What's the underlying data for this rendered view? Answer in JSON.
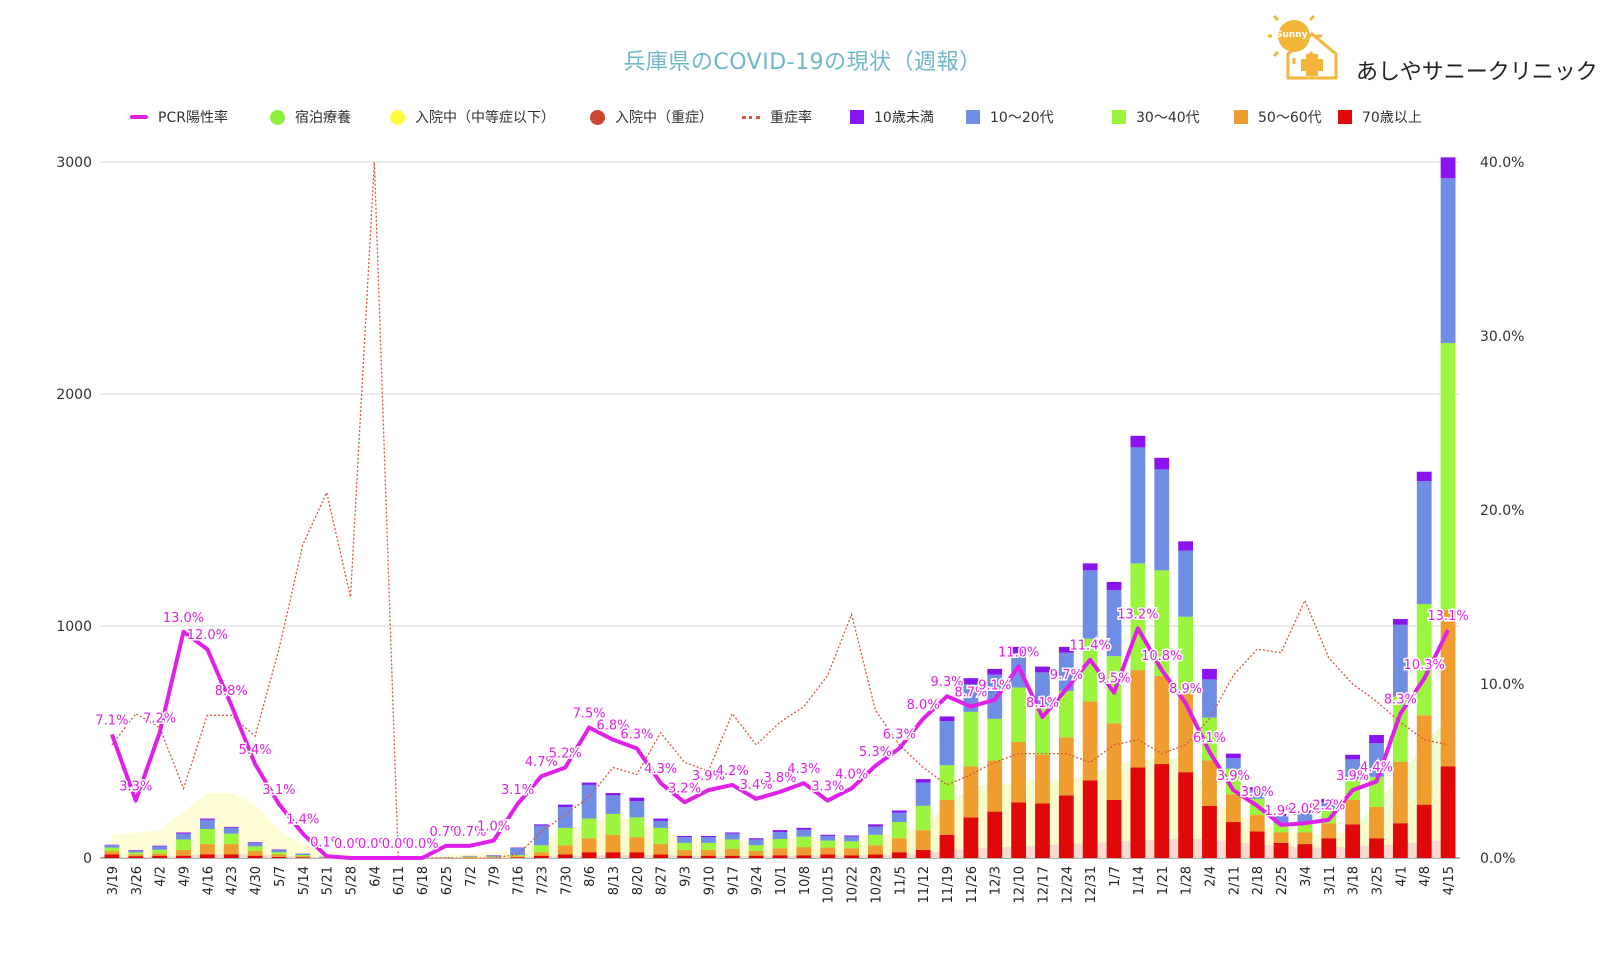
{
  "chart_data": {
    "type": "bar",
    "title": "兵庫県のCOVID-19の現状（週報）",
    "y_left_ticks": [
      "0",
      "1000",
      "2000",
      "3000"
    ],
    "y_right_ticks": [
      "0.0%",
      "10.0%",
      "20.0%",
      "30.0%",
      "40.0%"
    ],
    "ylim_left": [
      0,
      3000
    ],
    "ylim_right": [
      0,
      40
    ],
    "categories": [
      "3/19",
      "3/26",
      "4/2",
      "4/9",
      "4/16",
      "4/23",
      "4/30",
      "5/7",
      "5/14",
      "5/21",
      "5/28",
      "6/4",
      "6/11",
      "6/18",
      "6/25",
      "7/2",
      "7/9",
      "7/16",
      "7/23",
      "7/30",
      "8/6",
      "8/13",
      "8/20",
      "8/27",
      "9/3",
      "9/10",
      "9/17",
      "9/24",
      "10/1",
      "10/8",
      "10/15",
      "10/22",
      "10/29",
      "11/5",
      "11/12",
      "11/19",
      "11/26",
      "12/3",
      "12/10",
      "12/17",
      "12/24",
      "12/31",
      "1/7",
      "1/14",
      "1/21",
      "1/28",
      "2/4",
      "2/11",
      "2/18",
      "2/25",
      "3/4",
      "3/11",
      "3/18",
      "3/25",
      "4/1",
      "4/8",
      "4/15"
    ],
    "legend": [
      {
        "name": "PCR陽性率",
        "color": "#e020e8",
        "shape": "line"
      },
      {
        "name": "宿泊療養",
        "color": "#8df03a",
        "shape": "dot"
      },
      {
        "name": "入院中（中等症以下）",
        "color": "#fdfd3e",
        "shape": "dot"
      },
      {
        "name": "入院中（重症）",
        "color": "#c94830",
        "shape": "dot"
      },
      {
        "name": "重症率",
        "color": "#d9573b",
        "shape": "dash"
      },
      {
        "name": "10歳未満",
        "color": "#8a14f0",
        "shape": "square"
      },
      {
        "name": "10～20代",
        "color": "#6f8de4",
        "shape": "square"
      },
      {
        "name": "30～40代",
        "color": "#9bf53c",
        "shape": "square"
      },
      {
        "name": "50～60代",
        "color": "#ee9d2e",
        "shape": "square"
      },
      {
        "name": "70歳以上",
        "color": "#e00808",
        "shape": "square"
      }
    ],
    "series": [
      {
        "name": "70歳以上",
        "color": "#e00808",
        "values": [
          15,
          8,
          10,
          10,
          15,
          15,
          10,
          5,
          3,
          1,
          0,
          0,
          0,
          0,
          0,
          1,
          1,
          3,
          10,
          15,
          25,
          25,
          25,
          15,
          10,
          10,
          10,
          10,
          12,
          12,
          15,
          12,
          15,
          25,
          35,
          100,
          175,
          200,
          240,
          235,
          270,
          335,
          250,
          390,
          405,
          370,
          225,
          155,
          115,
          65,
          60,
          85,
          145,
          85,
          150,
          230,
          395
        ]
      },
      {
        "name": "50～60代",
        "color": "#ee9d2e",
        "values": [
          15,
          8,
          10,
          25,
          45,
          45,
          20,
          10,
          5,
          1,
          0,
          0,
          0,
          0,
          1,
          2,
          2,
          5,
          15,
          40,
          60,
          75,
          65,
          45,
          25,
          25,
          30,
          20,
          30,
          35,
          30,
          30,
          40,
          60,
          85,
          150,
          220,
          220,
          260,
          210,
          250,
          340,
          330,
          420,
          380,
          340,
          195,
          120,
          70,
          45,
          50,
          65,
          105,
          135,
          265,
          385,
          675
        ]
      },
      {
        "name": "30～40代",
        "color": "#9bf53c",
        "values": [
          15,
          8,
          15,
          45,
          65,
          45,
          20,
          10,
          5,
          2,
          0,
          0,
          0,
          0,
          1,
          3,
          3,
          5,
          30,
          75,
          85,
          90,
          85,
          70,
          30,
          30,
          40,
          25,
          40,
          45,
          30,
          30,
          45,
          70,
          105,
          150,
          235,
          180,
          235,
          210,
          200,
          270,
          290,
          460,
          455,
          330,
          185,
          110,
          70,
          40,
          45,
          55,
          90,
          130,
          280,
          480,
          1150
        ]
      },
      {
        "name": "10～20代",
        "color": "#6f8de4",
        "values": [
          10,
          8,
          15,
          25,
          40,
          25,
          15,
          10,
          5,
          2,
          0,
          0,
          0,
          0,
          1,
          2,
          5,
          30,
          85,
          90,
          145,
          80,
          70,
          30,
          25,
          25,
          25,
          25,
          30,
          30,
          20,
          20,
          35,
          40,
          100,
          190,
          120,
          190,
          145,
          145,
          165,
          295,
          285,
          500,
          435,
          285,
          165,
          45,
          40,
          30,
          40,
          35,
          85,
          145,
          310,
          530,
          710
        ]
      },
      {
        "name": "10歳未満",
        "color": "#8a14f0",
        "values": [
          2,
          2,
          3,
          5,
          5,
          4,
          3,
          2,
          1,
          0,
          0,
          0,
          0,
          0,
          0,
          1,
          1,
          2,
          5,
          10,
          10,
          10,
          15,
          10,
          5,
          5,
          5,
          5,
          8,
          8,
          5,
          5,
          10,
          10,
          15,
          20,
          25,
          25,
          30,
          25,
          25,
          30,
          35,
          50,
          50,
          40,
          45,
          20,
          10,
          10,
          10,
          15,
          20,
          35,
          25,
          40,
          90
        ]
      }
    ],
    "area_series": [
      {
        "name": "宿泊療養",
        "color": "#e8f9c8",
        "values": [
          0,
          0,
          0,
          20,
          40,
          60,
          30,
          15,
          5,
          0,
          0,
          0,
          0,
          0,
          0,
          5,
          10,
          20,
          60,
          90,
          110,
          120,
          100,
          60,
          30,
          30,
          35,
          30,
          35,
          40,
          40,
          40,
          60,
          90,
          130,
          240,
          300,
          330,
          300,
          320,
          330,
          360,
          400,
          420,
          430,
          430,
          280,
          160,
          100,
          50,
          50,
          60,
          120,
          240,
          350,
          500,
          600
        ]
      },
      {
        "name": "入院中（中等症以下）",
        "color": "#fefbc8",
        "values": [
          100,
          110,
          120,
          200,
          280,
          280,
          230,
          120,
          60,
          30,
          15,
          0,
          0,
          0,
          10,
          20,
          25,
          40,
          80,
          120,
          150,
          180,
          160,
          120,
          90,
          80,
          80,
          70,
          80,
          90,
          90,
          90,
          100,
          110,
          140,
          200,
          260,
          300,
          330,
          340,
          340,
          350,
          360,
          380,
          360,
          330,
          250,
          190,
          150,
          120,
          100,
          100,
          130,
          160,
          220,
          280,
          320
        ]
      },
      {
        "name": "入院中（重症）",
        "color": "#f6cfd2",
        "values": [
          5,
          5,
          5,
          10,
          15,
          15,
          15,
          10,
          5,
          3,
          2,
          0,
          0,
          0,
          0,
          0,
          1,
          2,
          5,
          8,
          10,
          12,
          14,
          12,
          10,
          8,
          8,
          8,
          8,
          10,
          10,
          10,
          12,
          15,
          20,
          30,
          40,
          45,
          50,
          55,
          60,
          65,
          70,
          75,
          80,
          85,
          80,
          70,
          60,
          50,
          45,
          45,
          50,
          55,
          60,
          70,
          80
        ]
      }
    ],
    "pcr_rate": {
      "name": "PCR陽性率",
      "color": "#e020e8",
      "values": [
        7.1,
        3.3,
        7.2,
        13.0,
        12.0,
        8.8,
        5.4,
        3.1,
        1.4,
        0.1,
        0.0,
        0.0,
        0.0,
        0.0,
        0.7,
        0.7,
        1.0,
        3.1,
        4.7,
        5.2,
        7.5,
        6.8,
        6.3,
        4.3,
        3.2,
        3.9,
        4.2,
        3.4,
        3.8,
        4.3,
        3.3,
        4.0,
        5.3,
        6.3,
        8.0,
        9.3,
        8.7,
        9.1,
        11.0,
        8.1,
        9.7,
        11.4,
        9.5,
        13.2,
        10.8,
        8.9,
        6.1,
        3.9,
        3.0,
        1.9,
        2.0,
        2.2,
        3.9,
        4.4,
        8.3,
        10.3,
        13.1
      ],
      "labels": [
        "7.1%",
        "3.3%",
        "7.2%",
        "13.0%",
        "12.0%",
        "8.8%",
        "5.4%",
        "3.1%",
        "1.4%",
        "0.1%",
        "0.0%",
        "0.0%",
        "0.0%",
        "0.0%",
        "0.7%",
        "0.7%",
        "1.0%",
        "3.1%",
        "4.7%",
        "5.2%",
        "7.5%",
        "6.8%",
        "6.3%",
        "4.3%",
        "3.2%",
        "3.9%",
        "4.2%",
        "3.4%",
        "3.8%",
        "4.3%",
        "3.3%",
        "4.0%",
        "5.3%",
        "6.3%",
        "8.0%",
        "9.3%",
        "8.7%",
        "9.1%",
        "11.0%",
        "8.1%",
        "9.7%",
        "11.4%",
        "9.5%",
        "13.2%",
        "10.8%",
        "8.9%",
        "6.1%",
        "3.9%",
        "3.0%",
        "1.9%",
        "2.0%",
        "2.2%",
        "3.9%",
        "4.4%",
        "8.3%",
        "10.3%",
        "13.1%"
      ]
    },
    "severe_rate": {
      "name": "重症率",
      "color": "#d9573b",
      "values": [
        6.5,
        8.3,
        7.5,
        4.0,
        8.2,
        8.2,
        7.0,
        12.0,
        18.0,
        21.0,
        15.0,
        40.0,
        0.0,
        0.0,
        0.0,
        0.0,
        0.0,
        0.2,
        1.5,
        2.5,
        3.5,
        5.2,
        4.8,
        7.2,
        5.5,
        5.0,
        8.3,
        6.5,
        7.8,
        8.7,
        10.5,
        14.0,
        8.5,
        6.5,
        5.2,
        4.2,
        4.8,
        5.5,
        6.0,
        6.0,
        6.0,
        5.5,
        6.5,
        6.8,
        6.0,
        6.5,
        8.0,
        10.5,
        12.0,
        11.8,
        14.8,
        11.5,
        10.0,
        9.0,
        7.8,
        6.8,
        6.5
      ]
    },
    "grid": true
  },
  "logo": {
    "badge_text": "Sunny",
    "name": "あしやサニークリニック"
  }
}
